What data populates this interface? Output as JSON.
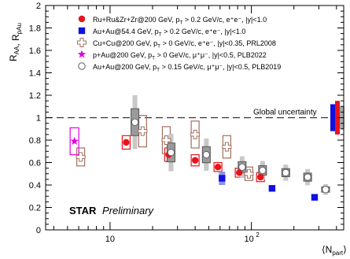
{
  "chart_data": {
    "type": "scatter",
    "title": "",
    "ylabel": "R_AA, R_pAu",
    "xlabel": "⟨N_part⟩",
    "x_scale": "log",
    "xlim": [
      3.5,
      450
    ],
    "ylim": [
      0,
      2
    ],
    "yticks": [
      {
        "v": 0,
        "label": "0"
      },
      {
        "v": 0.2,
        "label": "0.2"
      },
      {
        "v": 0.4,
        "label": "0.4"
      },
      {
        "v": 0.6,
        "label": "0.6"
      },
      {
        "v": 0.8,
        "label": "0.8"
      },
      {
        "v": 1,
        "label": "1"
      },
      {
        "v": 1.2,
        "label": "1.2"
      },
      {
        "v": 1.4,
        "label": "1.4"
      },
      {
        "v": 1.6,
        "label": "1.6"
      },
      {
        "v": 1.8,
        "label": "1.8"
      },
      {
        "v": 2,
        "label": "2"
      }
    ],
    "xticks_major": [
      {
        "v": 10,
        "label": "10"
      },
      {
        "v": 100,
        "label": "10",
        "sup": "2"
      }
    ],
    "reference_line": {
      "y": 1,
      "label": "Global uncertainty"
    },
    "watermark": {
      "bold": "STAR",
      "italic": "Preliminary"
    },
    "legend_position": "top",
    "series": [
      {
        "name": "Ru+Ru&Zr+Zr@200 GeV, p_T > 0.2 GeV/c, e⁺e⁻, |y|<1.0",
        "marker": "filled-circle",
        "color": "#e8141b",
        "points": [
          {
            "x": 13,
            "y": 0.78,
            "syst": 0.06
          },
          {
            "x": 26,
            "y": 0.67,
            "syst": 0.06
          },
          {
            "x": 40,
            "y": 0.62,
            "syst": 0.05
          },
          {
            "x": 58,
            "y": 0.56,
            "syst": 0.04
          },
          {
            "x": 82,
            "y": 0.51,
            "syst": 0.04
          },
          {
            "x": 116,
            "y": 0.47,
            "syst": 0.04
          }
        ]
      },
      {
        "name": "Au+Au@54.4 GeV, p_T > 0.2 GeV/c, e⁺e⁻, |y|<1.0",
        "marker": "filled-square",
        "color": "#1010e0",
        "points": [
          {
            "x": 62,
            "y": 0.46,
            "syst": 0.06
          },
          {
            "x": 140,
            "y": 0.37,
            "syst": 0.02
          },
          {
            "x": 280,
            "y": 0.29,
            "syst": 0.02
          }
        ]
      },
      {
        "name": "Cu+Cu@200 GeV, p_T > 0 GeV/c, e⁺e⁻, |y|<0.35, PRL2008",
        "marker": "open-cross",
        "color": "#a07060",
        "points": [
          {
            "x": 6.2,
            "y": 0.65,
            "syst": 0.08
          },
          {
            "x": 17,
            "y": 0.88,
            "syst": 0.14
          },
          {
            "x": 25,
            "y": 0.8,
            "syst": 0.12
          },
          {
            "x": 40,
            "y": 0.85,
            "syst": 0.12
          },
          {
            "x": 67,
            "y": 0.74,
            "syst": 0.1
          },
          {
            "x": 96,
            "y": 0.5,
            "syst": 0.06
          }
        ]
      },
      {
        "name": "p+Au@200 GeV, p_T > 0 GeV/c, μ⁺μ⁻, |y|<0.5, PLB2022",
        "marker": "star",
        "color": "#e000e0",
        "points": [
          {
            "x": 5.6,
            "y": 0.79,
            "syst": 0.12
          }
        ]
      },
      {
        "name": "Au+Au@200 GeV, p_T > 0.15 GeV/c, μ⁺μ⁻, |y|<0.5, PLB2019",
        "marker": "open-circle",
        "color": "#606060",
        "points": [
          {
            "x": 15,
            "y": 0.96,
            "syst": 0.2
          },
          {
            "x": 27,
            "y": 0.69,
            "syst": 0.14
          },
          {
            "x": 48,
            "y": 0.67,
            "syst": 0.12
          },
          {
            "x": 86,
            "y": 0.56,
            "syst": 0.08
          },
          {
            "x": 120,
            "y": 0.53,
            "syst": 0.07
          },
          {
            "x": 175,
            "y": 0.51,
            "syst": 0.06
          },
          {
            "x": 250,
            "y": 0.47,
            "syst": 0.06
          },
          {
            "x": 335,
            "y": 0.36,
            "syst": 0.04
          }
        ]
      }
    ],
    "legend": [
      {
        "marker": "filled-circle",
        "color": "#e8141b",
        "text": "Ru+Ru&Zr+Zr@200 GeV, p",
        "sub": "T",
        "rest": " > 0.2 GeV/c, e⁺e⁻, |y|<1.0"
      },
      {
        "marker": "filled-square",
        "color": "#1010e0",
        "text": "Au+Au@54.4 GeV, p",
        "sub": "T",
        "rest": " > 0.2 GeV/c, e⁺e⁻, |y|<1.0"
      },
      {
        "marker": "open-cross",
        "color": "#a07060",
        "text": "Cu+Cu@200 GeV, p",
        "sub": "T",
        "rest": " > 0 GeV/c, e⁺e⁻, |y|<0.35, PRL2008"
      },
      {
        "marker": "star",
        "color": "#e000e0",
        "text": "p+Au@200 GeV, p",
        "sub": "T",
        "rest": " > 0 GeV/c, μ⁺μ⁻, |y|<0.5, PLB2022"
      },
      {
        "marker": "open-circle",
        "color": "#606060",
        "text": "Au+Au@200 GeV, p",
        "sub": "T",
        "rest": " > 0.15 GeV/c, μ⁺μ⁻, |y|<0.5, PLB2019"
      }
    ],
    "global_uncertainty_boxes": [
      {
        "color": "#1010e0",
        "lo": 0.88,
        "hi": 1.12
      },
      {
        "color": "#e8141b",
        "lo": 0.85,
        "hi": 1.15
      },
      {
        "color": "#aaaaaa",
        "lo": 0.9,
        "hi": 1.1
      }
    ]
  }
}
